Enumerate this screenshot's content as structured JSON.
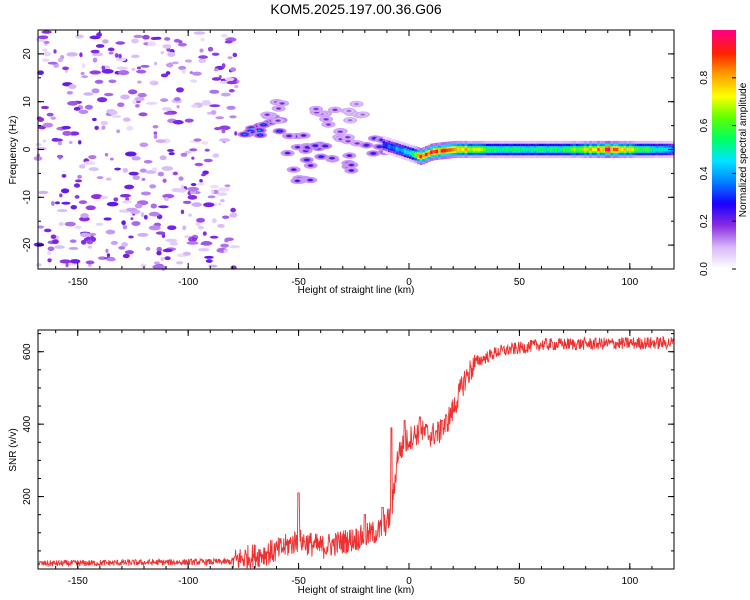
{
  "title": "KOM5.2025.197.00.36.G06",
  "chart_data": [
    {
      "type": "heatmap",
      "xlabel": "Height of straight line (km)",
      "ylabel": "Frequency (Hz)",
      "xlim": [
        -168,
        120
      ],
      "ylim": [
        -25,
        25
      ],
      "xticks": [
        -150,
        -100,
        -50,
        0,
        50,
        100
      ],
      "yticks": [
        -20,
        -10,
        0,
        10,
        20
      ],
      "colorbar": {
        "label": "Normalized spectral amplitude",
        "range": [
          0,
          1
        ],
        "ticks": [
          0.0,
          0.2,
          0.4,
          0.6,
          0.8
        ],
        "tick_labels": [
          "0.0",
          "0.2",
          "0.4",
          "0.6",
          "0.8"
        ],
        "colormap": [
          "#ffffff",
          "#d7b8f8",
          "#8a2be2",
          "#1a00ff",
          "#0080ff",
          "#00e5ff",
          "#00ff60",
          "#60ff00",
          "#ffff00",
          "#ffa000",
          "#ff2000",
          "#ff0080"
        ]
      },
      "noise_region": {
        "x": [
          -168,
          -78
        ],
        "y": [
          -25,
          25
        ],
        "typical_amplitude": 0.1
      },
      "clusters": [
        {
          "x": -70,
          "y": 3,
          "amplitude": 0.4
        },
        {
          "x": -63,
          "y": 5,
          "amplitude": 0.35
        },
        {
          "x": -60,
          "y": 8,
          "amplitude": 0.2
        },
        {
          "x": -50,
          "y": 1,
          "amplitude": 0.25
        },
        {
          "x": -48,
          "y": -5,
          "amplitude": 0.25
        },
        {
          "x": -42,
          "y": -1,
          "amplitude": 0.3
        },
        {
          "x": -38,
          "y": 7,
          "amplitude": 0.2
        },
        {
          "x": -30,
          "y": -3,
          "amplitude": 0.25
        },
        {
          "x": -28,
          "y": 2,
          "amplitude": 0.2
        },
        {
          "x": -25,
          "y": 8,
          "amplitude": 0.15
        },
        {
          "x": -15,
          "y": 1,
          "amplitude": 0.3
        }
      ],
      "signal_line": {
        "points": [
          [
            -12,
            1
          ],
          [
            -5,
            0
          ],
          [
            5,
            -1.5
          ],
          [
            10,
            -0.5
          ],
          [
            20,
            0
          ],
          [
            120,
            0
          ]
        ],
        "amplitude_profile": [
          [
            -12,
            0.3
          ],
          [
            0,
            0.5
          ],
          [
            5,
            0.9
          ],
          [
            20,
            0.85
          ],
          [
            40,
            0.5
          ],
          [
            70,
            0.55
          ],
          [
            90,
            0.9
          ],
          [
            110,
            0.5
          ],
          [
            120,
            0.4
          ]
        ]
      }
    },
    {
      "type": "line",
      "xlabel": "Height of straight line (km)",
      "ylabel": "SNR (v/v)",
      "xlim": [
        -168,
        120
      ],
      "ylim": [
        0,
        660
      ],
      "xticks": [
        -150,
        -100,
        -50,
        0,
        50,
        100
      ],
      "yticks": [
        200,
        400,
        600
      ],
      "series": [
        {
          "color": "#ef3030",
          "profile": [
            [
              -168,
              15
            ],
            [
              -80,
              20
            ],
            [
              -75,
              30
            ],
            [
              -60,
              50
            ],
            [
              -50,
              80
            ],
            [
              -40,
              60
            ],
            [
              -30,
              75
            ],
            [
              -20,
              90
            ],
            [
              -12,
              110
            ],
            [
              -8,
              150
            ],
            [
              -5,
              320
            ],
            [
              0,
              360
            ],
            [
              5,
              380
            ],
            [
              10,
              370
            ],
            [
              15,
              380
            ],
            [
              20,
              440
            ],
            [
              25,
              520
            ],
            [
              30,
              570
            ],
            [
              40,
              600
            ],
            [
              60,
              620
            ],
            [
              120,
              625
            ]
          ],
          "noise_amplitude": 35,
          "spikes": [
            [
              -50,
              210
            ],
            [
              -20,
              150
            ],
            [
              -12,
              170
            ],
            [
              -8,
              390
            ],
            [
              -2,
              410
            ],
            [
              5,
              420
            ],
            [
              15,
              410
            ]
          ]
        }
      ]
    }
  ]
}
